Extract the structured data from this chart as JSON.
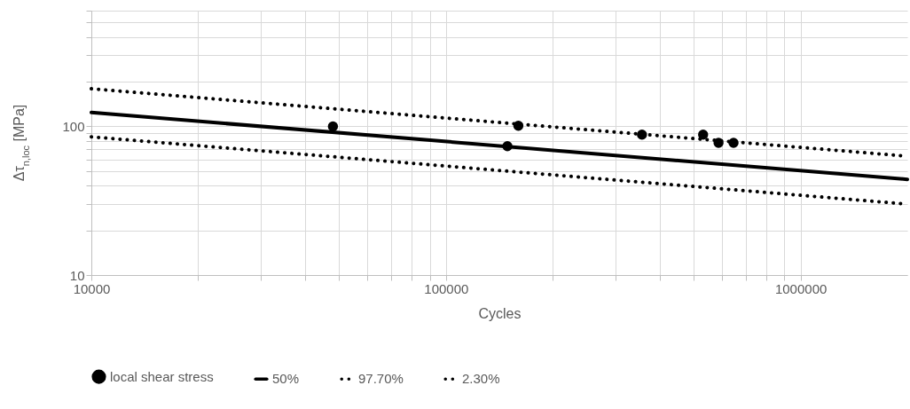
{
  "chart_data": {
    "type": "scatter",
    "xlabel": "Cycles",
    "ylabel": "Δτ$_{n,loc}$ [MPa]",
    "log": "xy",
    "grid": true,
    "legend": "bottom",
    "xlim": [
      10000,
      2000000
    ],
    "ylim": [
      10,
      600
    ],
    "xticks": [
      10000,
      {
        "value": 20000,
        "label": null
      },
      {
        "value": 30000,
        "label": null
      },
      {
        "value": 40000,
        "label": null
      },
      {
        "value": 50000,
        "label": null
      },
      {
        "value": 60000,
        "label": null
      },
      {
        "value": 70000,
        "label": null
      },
      {
        "value": 80000,
        "label": null
      },
      {
        "value": 90000,
        "label": null
      },
      100000,
      {
        "value": 200000,
        "label": null
      },
      {
        "value": 300000,
        "label": null
      },
      {
        "value": 400000,
        "label": null
      },
      {
        "value": 500000,
        "label": null
      },
      {
        "value": 600000,
        "label": null
      },
      {
        "value": 700000,
        "label": null
      },
      {
        "value": 800000,
        "label": null
      },
      {
        "value": 900000,
        "label": null
      },
      1000000
    ],
    "yticks": [
      10,
      {
        "value": 20,
        "label": null
      },
      {
        "value": 30,
        "label": null
      },
      {
        "value": 40,
        "label": null
      },
      {
        "value": 50,
        "label": null
      },
      {
        "value": 60,
        "label": null
      },
      {
        "value": 70,
        "label": null
      },
      {
        "value": 80,
        "label": null
      },
      {
        "value": 90,
        "label": null
      },
      100,
      {
        "value": 200,
        "label": null
      },
      {
        "value": 300,
        "label": null
      },
      {
        "value": 400,
        "label": null
      },
      {
        "value": 500,
        "label": null
      },
      {
        "value": 600,
        "label": null
      }
    ],
    "series": [
      {
        "name": "local shear stress",
        "type": "scatter",
        "marker": "circle",
        "color": "#000000",
        "x": [
          48000,
          149000,
          160000,
          357000,
          531000,
          587000,
          647000
        ],
        "values": [
          100,
          73.5,
          101,
          88,
          88,
          77.5,
          77.5
        ]
      },
      {
        "name": "50%",
        "type": "line",
        "line_style": "solid",
        "color": "#000000",
        "x": [
          10000,
          2000000
        ],
        "values": [
          124,
          44
        ]
      },
      {
        "name": "97.70%",
        "type": "line",
        "line_style": "dotted",
        "color": "#000000",
        "x": [
          10000,
          2000000
        ],
        "values": [
          179,
          63
        ]
      },
      {
        "name": "2.30%",
        "type": "line",
        "line_style": "dotted",
        "color": "#000000",
        "x": [
          10000,
          2000000
        ],
        "values": [
          85,
          30
        ]
      }
    ]
  }
}
